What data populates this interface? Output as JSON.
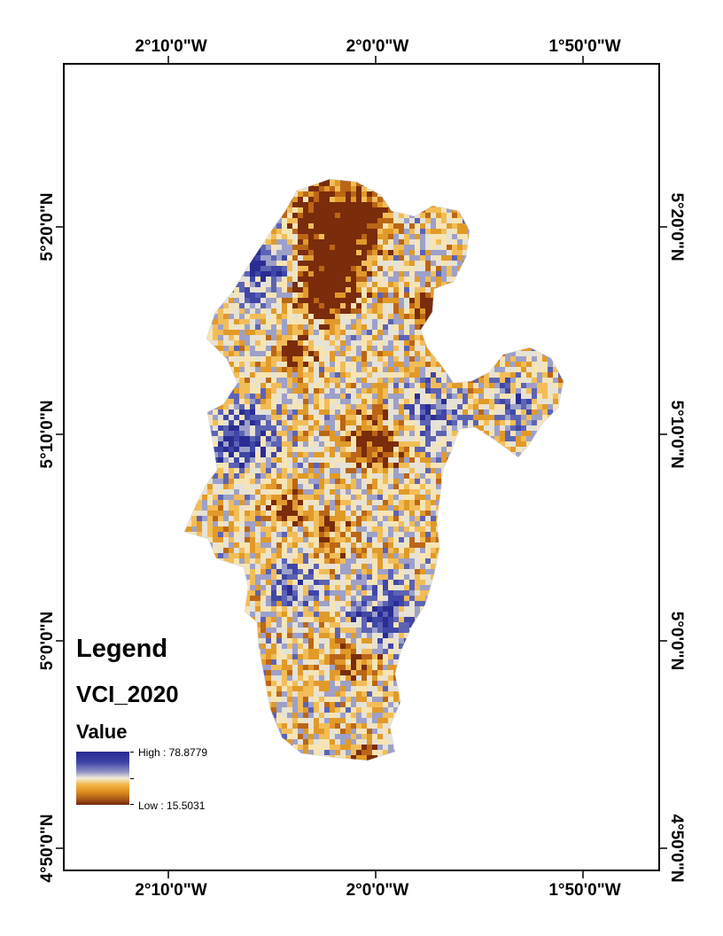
{
  "map": {
    "top_lon_labels": [
      "2°10'0\"W",
      "2°0'0\"W",
      "1°50'0\"W"
    ],
    "bottom_lon_labels": [
      "2°10'0\"W",
      "2°0'0\"W",
      "1°50'0\"W"
    ],
    "left_lat_labels": [
      "5°20'0\"N",
      "5°10'0\"N",
      "5°0'0\"N",
      "4°50'0\"N"
    ],
    "right_lat_labels": [
      "5°20'0\"N",
      "5°10'0\"N",
      "5°0'0\"N",
      "4°50'0\"N"
    ],
    "raster_palette": [
      "#2a2c93",
      "#3f46a7",
      "#5c63b4",
      "#9da0c9",
      "#e6e2d5",
      "#f6e4b5",
      "#f2bd57",
      "#e19a28",
      "#bb6616",
      "#7a2c0b"
    ]
  },
  "legend": {
    "title": "Legend",
    "layer": "VCI_2020",
    "field": "Value",
    "high_label": "High : 78.8779",
    "low_label": "Low : 15.5031",
    "high_value": 78.8779,
    "low_value": 15.5031
  }
}
